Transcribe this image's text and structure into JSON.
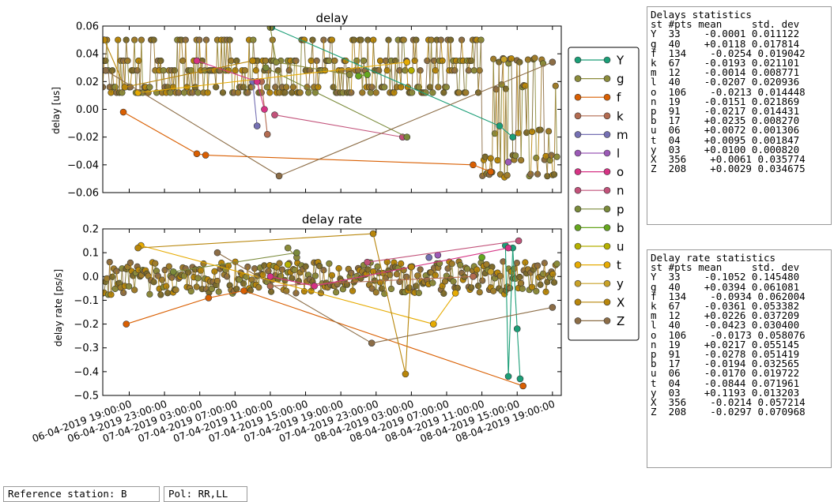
{
  "chart_data": [
    {
      "type": "line",
      "title": "delay",
      "ylabel": "delay [us]",
      "ylim": [
        -0.06,
        0.06
      ],
      "yticks": [
        "0.06",
        "0.04",
        "0.02",
        "0.00",
        "−0.02",
        "−0.04",
        "−0.06"
      ],
      "xlim": [
        "2019-04-06 16:00",
        "2019-04-08 20:00"
      ],
      "grid": false,
      "band_levels": [
        0.035,
        0.016,
        -0.016,
        -0.035,
        -0.047
      ],
      "series": [
        {
          "name": "Y",
          "color": "#1b9e77",
          "points": [
            [
              "2019-04-07 11:10",
              0.059
            ],
            [
              "2019-04-08 13:00",
              -0.012
            ],
            [
              "2019-04-08 14:30",
              -0.02
            ]
          ]
        },
        {
          "name": "g",
          "color": "#8b8b3a",
          "points": [
            [
              "2019-04-07 11:00",
              0.059
            ],
            [
              "2019-04-07 11:40",
              0.034
            ],
            [
              "2019-04-07 20:00",
              0.025
            ]
          ]
        },
        {
          "name": "f",
          "color": "#d95f02",
          "points": [
            [
              "2019-04-06 18:20",
              -0.002
            ],
            [
              "2019-04-07 02:40",
              -0.032
            ],
            [
              "2019-04-07 03:40",
              -0.033
            ],
            [
              "2019-04-08 10:00",
              -0.04
            ],
            [
              "2019-04-08 12:00",
              -0.045
            ]
          ]
        },
        {
          "name": "k",
          "color": "#b36b50",
          "points": [
            [
              "2019-04-07 10:00",
              0.02
            ],
            [
              "2019-04-07 10:40",
              -0.018
            ]
          ]
        },
        {
          "name": "m",
          "color": "#7570b3",
          "points": [
            [
              "2019-04-07 09:00",
              0.02
            ],
            [
              "2019-04-07 09:30",
              -0.012
            ]
          ]
        },
        {
          "name": "l",
          "color": "#9b59b6",
          "points": [
            [
              "2019-04-08 14:00",
              -0.038
            ]
          ]
        },
        {
          "name": "o",
          "color": "#d63384",
          "points": [
            [
              "2019-04-07 02:40",
              0.035
            ],
            [
              "2019-04-07 09:30",
              0.02
            ],
            [
              "2019-04-07 10:20",
              0.0
            ]
          ]
        },
        {
          "name": "n",
          "color": "#c2527a",
          "points": [
            [
              "2019-04-07 11:30",
              -0.004
            ],
            [
              "2019-04-08 02:00",
              -0.02
            ]
          ]
        },
        {
          "name": "p",
          "color": "#7a8a3a",
          "points": [
            [
              "2019-04-07 10:30",
              0.03
            ],
            [
              "2019-04-08 02:30",
              -0.02
            ]
          ]
        },
        {
          "name": "b",
          "color": "#66a61e",
          "points": [
            [
              "2019-04-07 21:00",
              0.024
            ],
            [
              "2019-04-07 22:00",
              0.025
            ]
          ]
        },
        {
          "name": "u",
          "color": "#b5b000",
          "points": [
            [
              "2019-04-08 03:00",
              0.028
            ]
          ]
        },
        {
          "name": "t",
          "color": "#e6ab02",
          "points": [
            [
              "2019-04-06 20:00",
              0.012
            ],
            [
              "2019-04-08 02:30",
              0.034
            ]
          ]
        },
        {
          "name": "y",
          "color": "#c9a227",
          "points": [
            [
              "2019-04-08 13:30",
              0.036
            ]
          ]
        },
        {
          "name": "X",
          "color": "#b8860b",
          "points": [
            [
              "2019-04-06 16:10",
              0.05
            ],
            [
              "2019-04-06 18:30",
              0.016
            ],
            [
              "2019-04-07 09:00",
              0.035
            ]
          ]
        },
        {
          "name": "Z",
          "color": "#8c6d46",
          "points": [
            [
              "2019-04-06 16:20",
              0.028
            ],
            [
              "2019-04-07 12:00",
              -0.048
            ],
            [
              "2019-04-08 19:00",
              0.034
            ]
          ]
        }
      ]
    },
    {
      "type": "line",
      "title": "delay rate",
      "ylabel": "delay rate [ps/s]",
      "ylim": [
        -0.5,
        0.2
      ],
      "yticks": [
        "0.2",
        "0.1",
        "0.0",
        "−0.1",
        "−0.2",
        "−0.3",
        "−0.4",
        "−0.5"
      ],
      "xlim": [
        "2019-04-06 16:00",
        "2019-04-08 20:00"
      ],
      "xticks": [
        "06-04-2019 19:00:00",
        "06-04-2019 23:00:00",
        "07-04-2019 03:00:00",
        "07-04-2019 07:00:00",
        "07-04-2019 11:00:00",
        "07-04-2019 15:00:00",
        "07-04-2019 19:00:00",
        "07-04-2019 23:00:00",
        "08-04-2019 03:00:00",
        "08-04-2019 07:00:00",
        "08-04-2019 11:00:00",
        "08-04-2019 15:00:00",
        "08-04-2019 19:00:00"
      ],
      "grid": false,
      "series": [
        {
          "name": "Y",
          "color": "#1b9e77",
          "points": [
            [
              "2019-04-08 13:40",
              0.13
            ],
            [
              "2019-04-08 14:00",
              -0.42
            ],
            [
              "2019-04-08 14:30",
              0.12
            ],
            [
              "2019-04-08 15:00",
              -0.22
            ],
            [
              "2019-04-08 15:20",
              -0.43
            ]
          ]
        },
        {
          "name": "g",
          "color": "#8b8b3a",
          "points": [
            [
              "2019-04-07 13:00",
              0.12
            ],
            [
              "2019-04-07 14:00",
              0.08
            ]
          ]
        },
        {
          "name": "f",
          "color": "#d95f02",
          "points": [
            [
              "2019-04-06 18:40",
              -0.2
            ],
            [
              "2019-04-07 04:00",
              -0.09
            ],
            [
              "2019-04-07 08:00",
              -0.06
            ],
            [
              "2019-04-08 15:40",
              -0.46
            ]
          ]
        },
        {
          "name": "k",
          "color": "#b36b50",
          "points": [
            [
              "2019-04-07 11:00",
              -0.04
            ],
            [
              "2019-04-08 10:00",
              0.0
            ]
          ]
        },
        {
          "name": "m",
          "color": "#7570b3",
          "points": [
            [
              "2019-04-08 05:00",
              0.08
            ]
          ]
        },
        {
          "name": "l",
          "color": "#9b59b6",
          "points": [
            [
              "2019-04-08 06:00",
              0.09
            ]
          ]
        },
        {
          "name": "o",
          "color": "#d63384",
          "points": [
            [
              "2019-04-07 11:00",
              0.0
            ],
            [
              "2019-04-07 16:00",
              -0.04
            ],
            [
              "2019-04-08 14:00",
              0.12
            ]
          ]
        },
        {
          "name": "n",
          "color": "#c2527a",
          "points": [
            [
              "2019-04-07 22:00",
              0.06
            ],
            [
              "2019-04-08 15:10",
              0.15
            ]
          ]
        },
        {
          "name": "p",
          "color": "#7a8a3a",
          "points": [
            [
              "2019-04-07 00:00",
              0.02
            ],
            [
              "2019-04-07 14:00",
              0.1
            ]
          ]
        },
        {
          "name": "b",
          "color": "#66a61e",
          "points": [
            [
              "2019-04-08 11:00",
              0.08
            ]
          ]
        },
        {
          "name": "u",
          "color": "#b5b000",
          "points": [
            [
              "2019-04-07 13:00",
              0.05
            ]
          ]
        },
        {
          "name": "t",
          "color": "#e6ab02",
          "points": [
            [
              "2019-04-06 20:20",
              0.13
            ],
            [
              "2019-04-08 05:30",
              -0.2
            ],
            [
              "2019-04-08 08:00",
              -0.07
            ]
          ]
        },
        {
          "name": "y",
          "color": "#c9a227",
          "points": [
            [
              "2019-04-08 12:00",
              0.02
            ]
          ]
        },
        {
          "name": "X",
          "color": "#b8860b",
          "points": [
            [
              "2019-04-06 20:00",
              0.12
            ],
            [
              "2019-04-07 22:40",
              0.18
            ],
            [
              "2019-04-08 02:20",
              -0.41
            ],
            [
              "2019-04-08 03:00",
              0.04
            ]
          ]
        },
        {
          "name": "Z",
          "color": "#8c6d46",
          "points": [
            [
              "2019-04-07 05:00",
              0.1
            ],
            [
              "2019-04-07 22:30",
              -0.28
            ],
            [
              "2019-04-08 19:00",
              -0.13
            ]
          ]
        }
      ]
    }
  ],
  "legend": {
    "placement": "right",
    "entries": [
      "Y",
      "g",
      "f",
      "k",
      "m",
      "l",
      "o",
      "n",
      "p",
      "b",
      "u",
      "t",
      "y",
      "X",
      "Z"
    ]
  },
  "delays_stats": {
    "title": "Delays statistics",
    "header": "st #pts mean     std. dev",
    "rows": [
      "Y  33    -0.0001 0.011122",
      "g  40    +0.0118 0.017814",
      "f  134    -0.0254 0.019042",
      "k  67    -0.0193 0.021101",
      "m  12    -0.0014 0.008771",
      "l  40    -0.0207 0.020936",
      "o  106    -0.0213 0.014448",
      "n  19    -0.0151 0.021869",
      "p  91    -0.0217 0.014431",
      "b  17    +0.0235 0.008270",
      "u  06    +0.0072 0.001306",
      "t  04    +0.0095 0.001847",
      "y  03    +0.0100 0.000820",
      "X  356    +0.0061 0.035774",
      "Z  208    +0.0029 0.034675"
    ]
  },
  "rate_stats": {
    "title": "Delay rate statistics",
    "header": "st #pts mean     std. dev",
    "rows": [
      "Y  33    -0.1052 0.145480",
      "g  40    +0.0394 0.061081",
      "f  134    -0.0934 0.062004",
      "k  67    -0.0361 0.053382",
      "m  12    +0.0226 0.037209",
      "l  40    -0.0423 0.030400",
      "o  106    -0.0173 0.058076",
      "n  19    +0.0217 0.055145",
      "p  91    -0.0278 0.051419",
      "b  17    -0.0194 0.032565",
      "u  06    -0.0170 0.019722",
      "t  04    -0.0844 0.071961",
      "y  03    +0.1193 0.013203",
      "X  356    -0.0214 0.057214",
      "Z  208    -0.0297 0.070968"
    ]
  },
  "footer": {
    "reference_station": "Reference station: B",
    "pol": "Pol: RR,LL"
  }
}
